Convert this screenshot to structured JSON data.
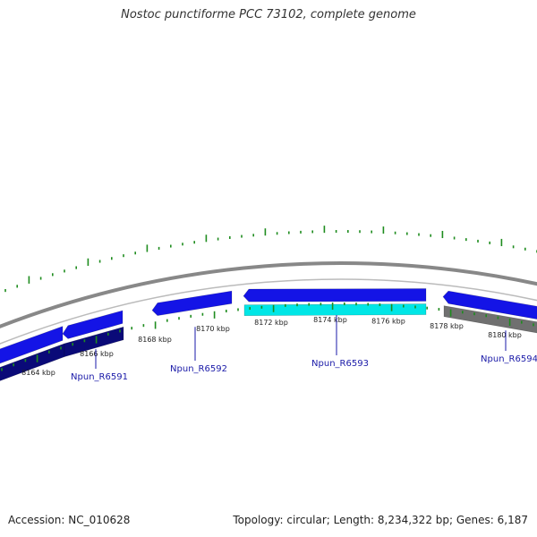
{
  "title": "Nostoc punctiforme PCC 73102, complete genome",
  "footer": {
    "accession": "Accession: NC_010628",
    "summary": "Topology: circular; Length: 8,234,322 bp; Genes: 6,187"
  },
  "colors": {
    "backbone": "#888888",
    "tick": "#1e8c1e",
    "gene_forward": "#1414e6",
    "gene_dark": "#0a0a78",
    "gene_cyan": "#00e6e6",
    "gene_gray": "#707070",
    "label": "#1a1aa8"
  },
  "scale_labels": [
    "8164 kbp",
    "8166 kbp",
    "8168 kbp",
    "8170 kbp",
    "8172 kbp",
    "8174 kbp",
    "8176 kbp",
    "8178 kbp",
    "8180 kbp"
  ],
  "gene_labels": [
    "Npun_R6591",
    "Npun_R6592",
    "Npun_R6593",
    "Npun_R6594"
  ]
}
